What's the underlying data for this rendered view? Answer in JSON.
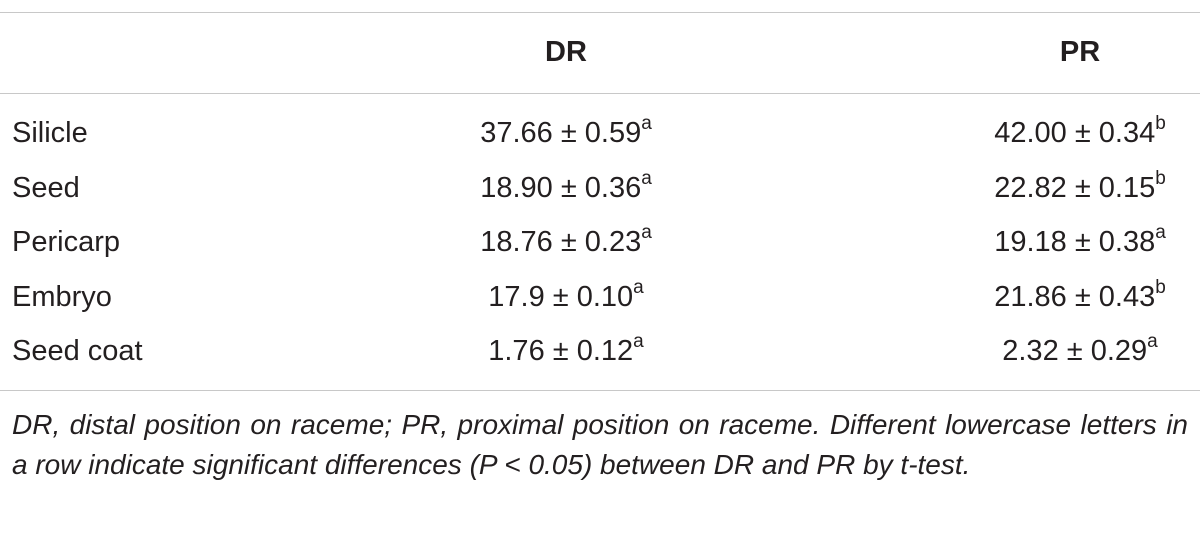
{
  "table": {
    "header": [
      "DR",
      "PR"
    ],
    "rows": [
      {
        "label": "Silicle",
        "cells": [
          {
            "text": "37.66 ± 0.59",
            "sup": "a"
          },
          {
            "text": "42.00 ± 0.34",
            "sup": "b"
          }
        ]
      },
      {
        "label": "Seed",
        "cells": [
          {
            "text": "18.90 ± 0.36",
            "sup": "a"
          },
          {
            "text": "22.82 ± 0.15",
            "sup": "b"
          }
        ]
      },
      {
        "label": "Pericarp",
        "cells": [
          {
            "text": "18.76 ± 0.23",
            "sup": "a"
          },
          {
            "text": "19.18 ± 0.38",
            "sup": "a"
          }
        ]
      },
      {
        "label": "Embryo",
        "cells": [
          {
            "text": "17.9 ± 0.10",
            "sup": "a"
          },
          {
            "text": "21.86 ± 0.43",
            "sup": "b"
          }
        ]
      },
      {
        "label": "Seed coat",
        "cells": [
          {
            "text": "1.76 ± 0.12",
            "sup": "a"
          },
          {
            "text": "2.32 ± 0.29",
            "sup": "a"
          }
        ]
      }
    ],
    "footnote": "DR, distal position on raceme; PR, proximal position on raceme. Different lowercase letters in a row indicate significant differences (P < 0.05) between DR and PR by t-test."
  }
}
